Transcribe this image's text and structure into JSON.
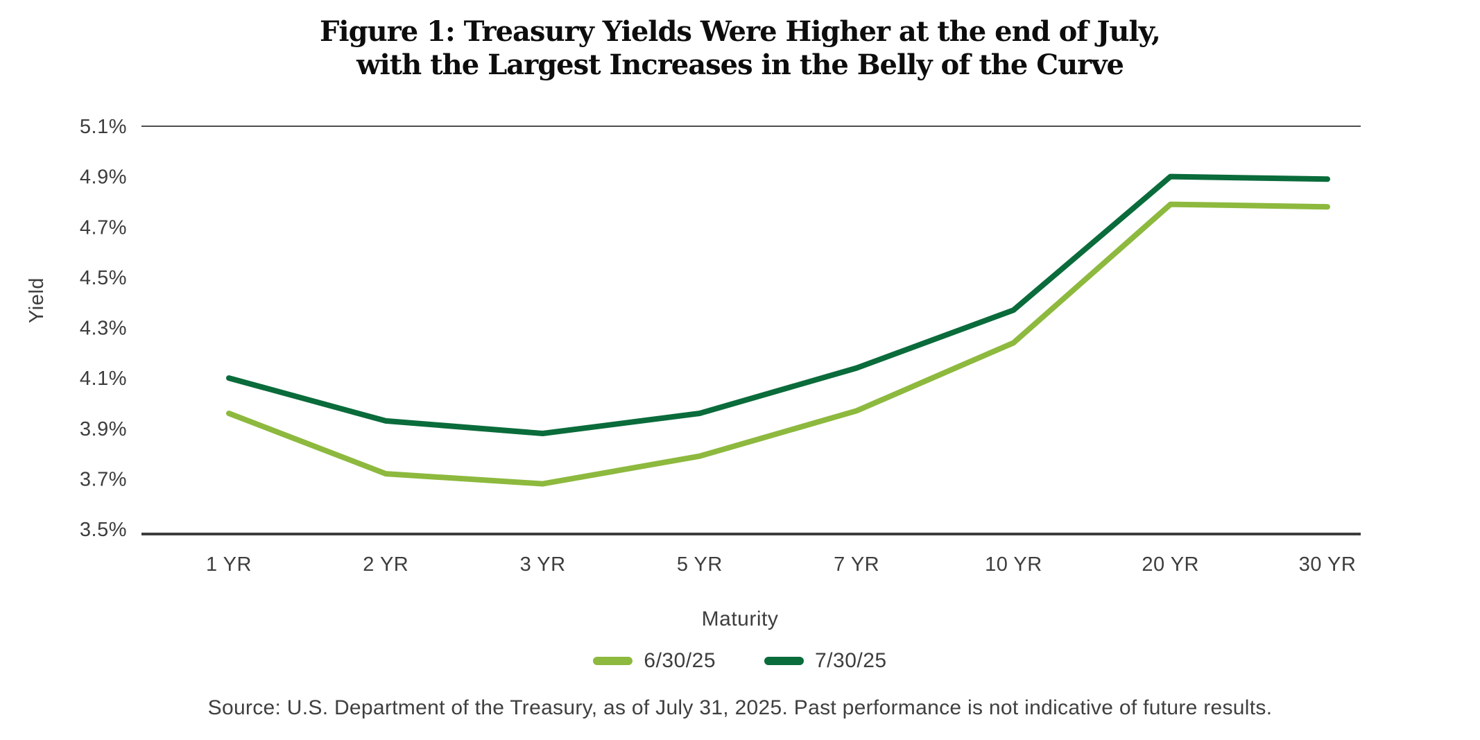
{
  "figure": {
    "title_line1": "Figure 1: Treasury Yields Were Higher at the end of July,",
    "title_line2": "with the Largest Increases in the Belly of the Curve",
    "source": "Source: U.S. Department of the Treasury, as of July 31, 2025. Past performance is not indicative of future results."
  },
  "chart_data": {
    "type": "line",
    "title": "Figure 1: Treasury Yields Were Higher at the end of July, with the Largest Increases in the Belly of the Curve",
    "xlabel": "Maturity",
    "ylabel": "Yield",
    "unit": "%",
    "categories": [
      "1 YR",
      "2 YR",
      "3 YR",
      "5 YR",
      "7 YR",
      "10 YR",
      "20 YR",
      "30 YR"
    ],
    "series": [
      {
        "name": "6/30/25",
        "color": "#8db93e",
        "values": [
          3.96,
          3.72,
          3.68,
          3.79,
          3.97,
          4.24,
          4.79,
          4.78
        ]
      },
      {
        "name": "7/30/25",
        "color": "#0a6b3b",
        "values": [
          4.1,
          3.93,
          3.88,
          3.96,
          4.14,
          4.37,
          4.9,
          4.89
        ]
      }
    ],
    "ylim": [
      3.5,
      5.1
    ],
    "y_ticks": {
      "values": [
        5.1,
        4.9,
        4.7,
        4.5,
        4.3,
        4.1,
        3.9,
        3.7,
        3.5
      ],
      "labels": [
        "5.1%",
        "4.9%",
        "4.7%",
        "4.5%",
        "4.3%",
        "4.1%",
        "3.9%",
        "3.7%",
        "3.5%"
      ]
    },
    "grid": "horizontal rule at top (5.1%) and axis line at bottom (3.5%) only",
    "legend_position": "bottom-center"
  },
  "colors": {
    "axis_line": "#3d3d3d",
    "grid_line": "#4d4d4d",
    "tick_text": "#3d3d3d",
    "title_text": "#0d0d0d"
  }
}
